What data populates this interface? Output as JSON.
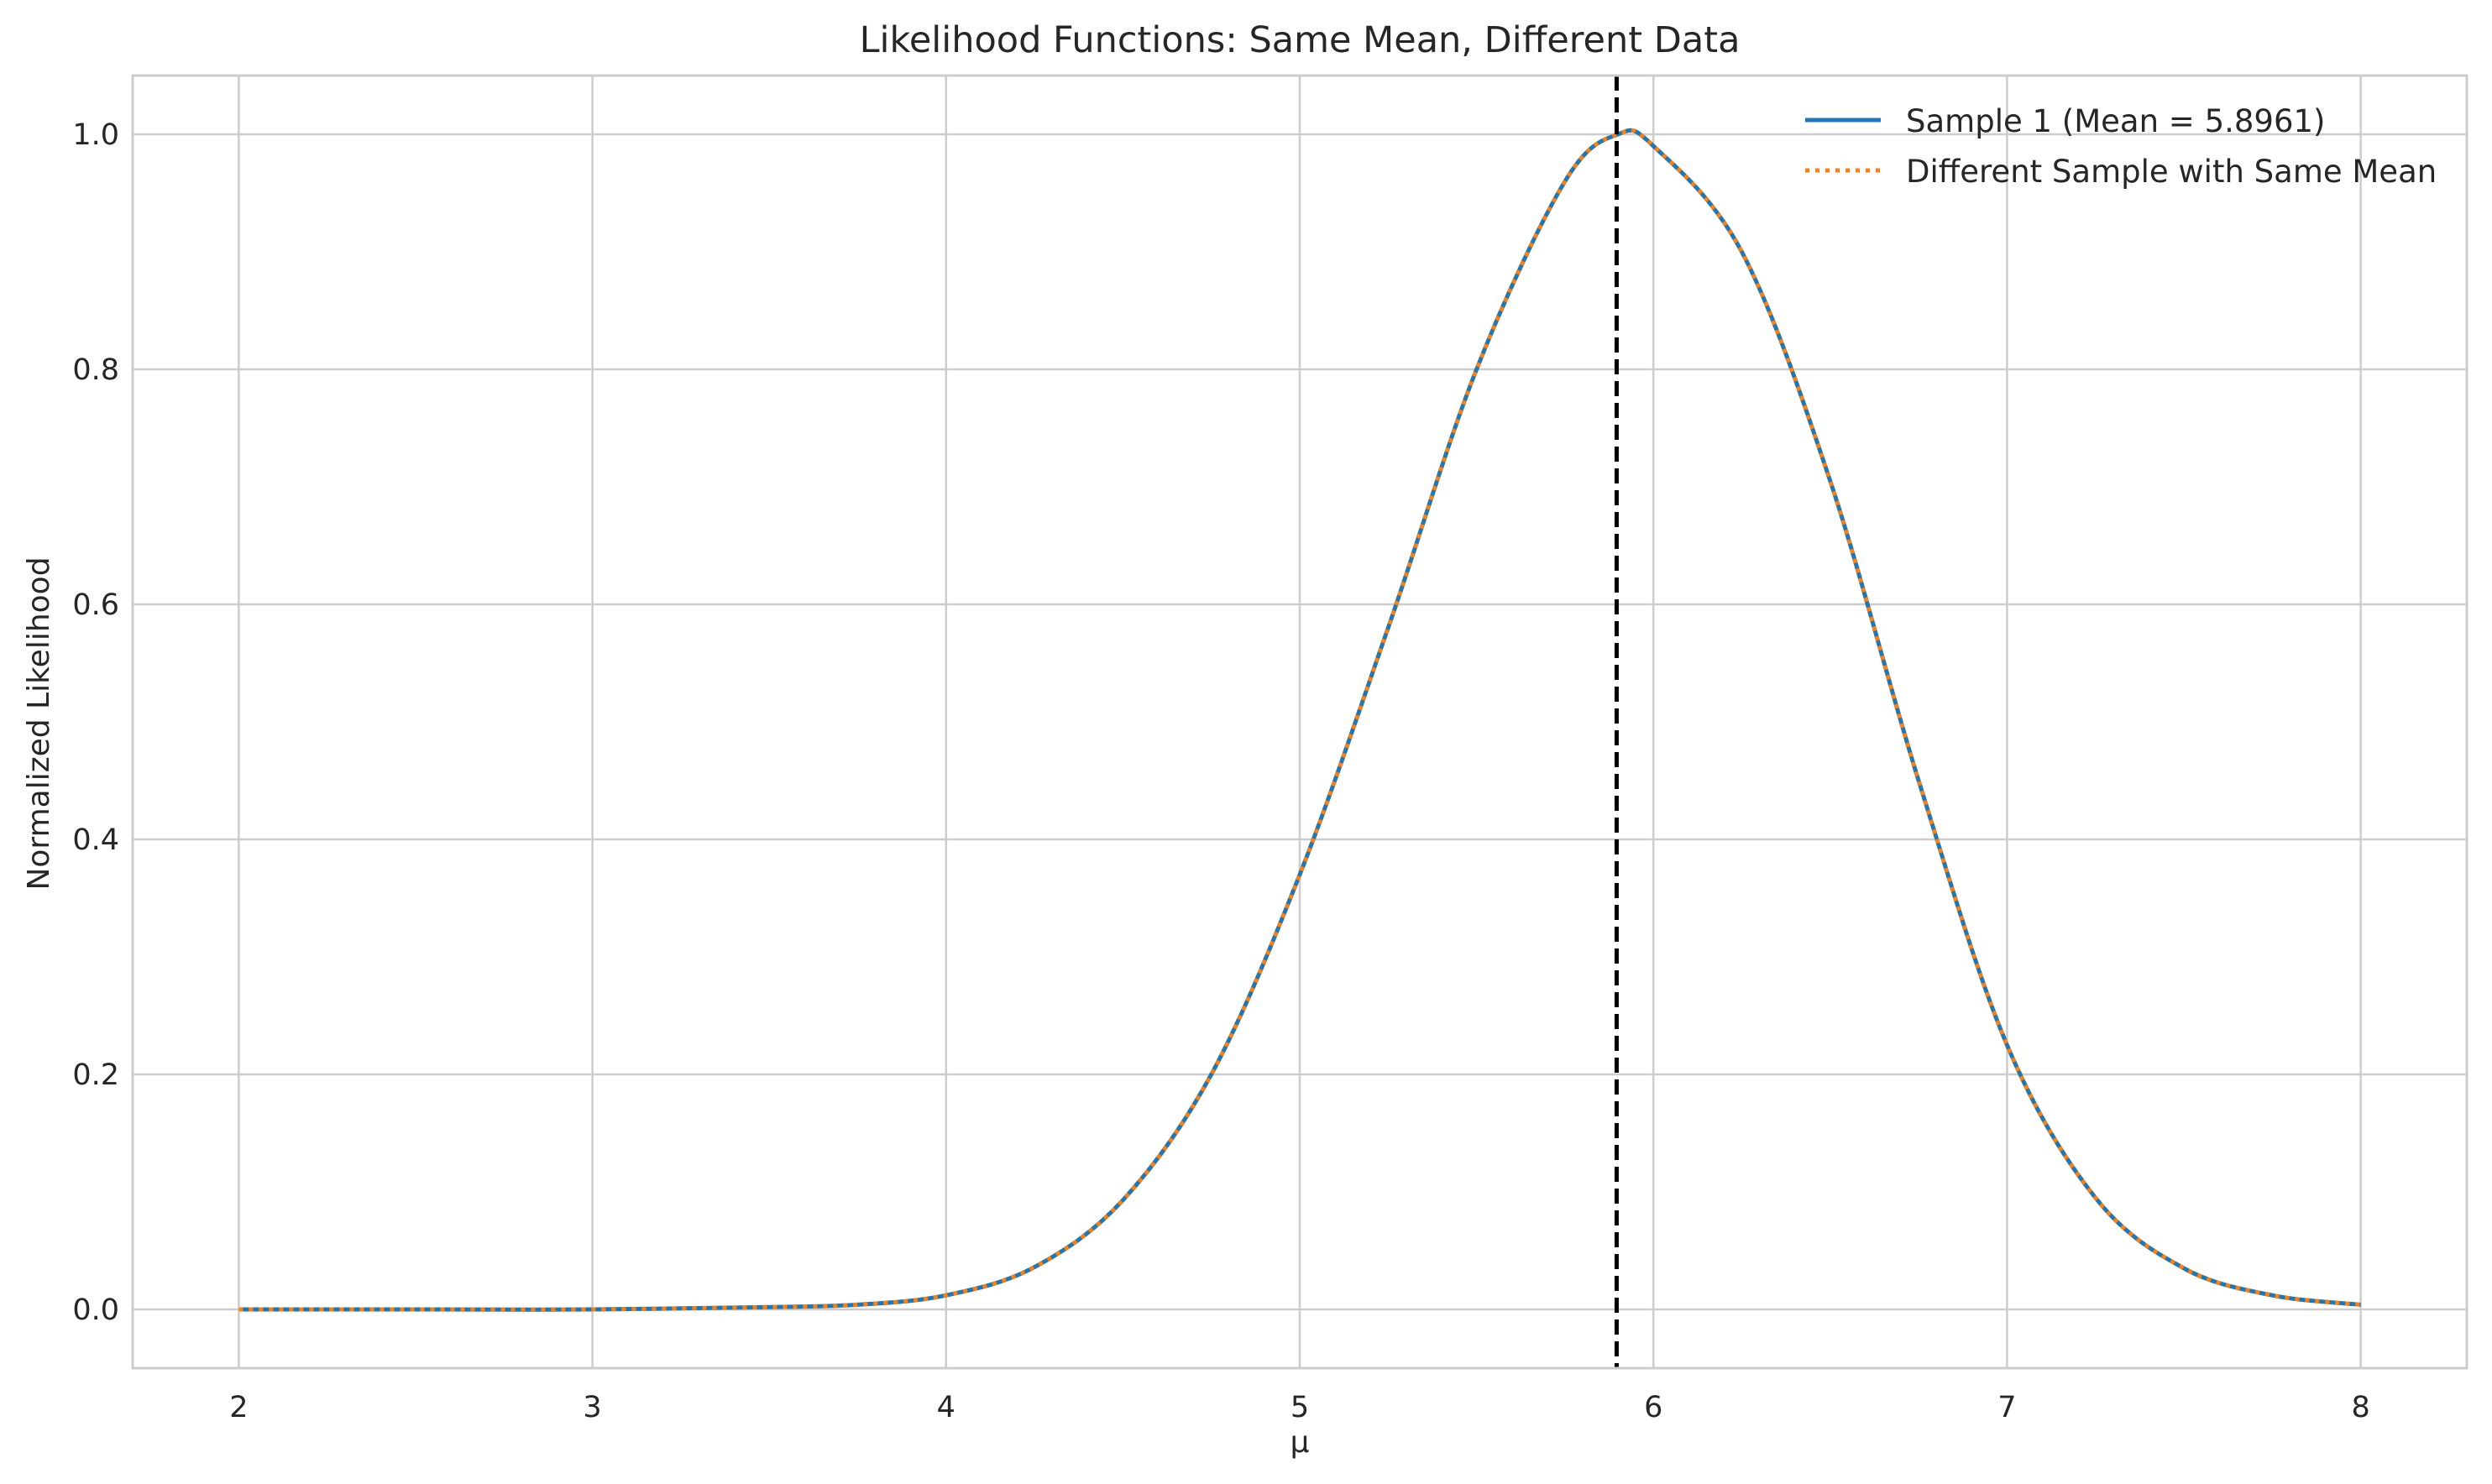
{
  "chart_data": {
    "type": "line",
    "title": "Likelihood Functions: Same Mean, Different Data",
    "xlabel": "μ",
    "ylabel": "Normalized Likelihood",
    "xlim": [
      1.7,
      8.3
    ],
    "ylim": [
      -0.05,
      1.05
    ],
    "xticks": [
      2,
      3,
      4,
      5,
      6,
      7,
      8
    ],
    "xtick_labels": [
      "2",
      "3",
      "4",
      "5",
      "6",
      "7",
      "8"
    ],
    "yticks": [
      0.0,
      0.2,
      0.4,
      0.6,
      0.8,
      1.0
    ],
    "ytick_labels": [
      "0.0",
      "0.2",
      "0.4",
      "0.6",
      "0.8",
      "1.0"
    ],
    "grid": true,
    "legend_position": "top-right",
    "x": [
      2.0,
      2.5,
      3.0,
      3.5,
      3.75,
      4.0,
      4.25,
      4.5,
      4.75,
      5.0,
      5.25,
      5.5,
      5.75,
      5.9,
      6.0,
      6.25,
      6.5,
      6.75,
      7.0,
      7.25,
      7.5,
      7.75,
      8.0
    ],
    "series": [
      {
        "name": "Sample 1 (Mean = 5.8961)",
        "style": "solid",
        "color": "#1f77b4",
        "values": [
          0.0,
          0.0,
          0.0,
          0.002,
          0.004,
          0.012,
          0.036,
          0.093,
          0.2,
          0.37,
          0.58,
          0.8,
          0.96,
          1.0,
          0.99,
          0.9,
          0.705,
          0.45,
          0.225,
          0.095,
          0.035,
          0.012,
          0.004
        ]
      },
      {
        "name": "Different Sample with Same Mean",
        "style": "dotted",
        "color": "#ff7f0e",
        "values": [
          0.0,
          0.0,
          0.0,
          0.002,
          0.004,
          0.012,
          0.036,
          0.093,
          0.2,
          0.37,
          0.58,
          0.8,
          0.96,
          1.0,
          0.99,
          0.9,
          0.705,
          0.45,
          0.225,
          0.095,
          0.035,
          0.012,
          0.004
        ]
      }
    ],
    "reference_line": {
      "orientation": "vertical",
      "x": 5.8961,
      "style": "dashed",
      "color": "#000000"
    }
  }
}
